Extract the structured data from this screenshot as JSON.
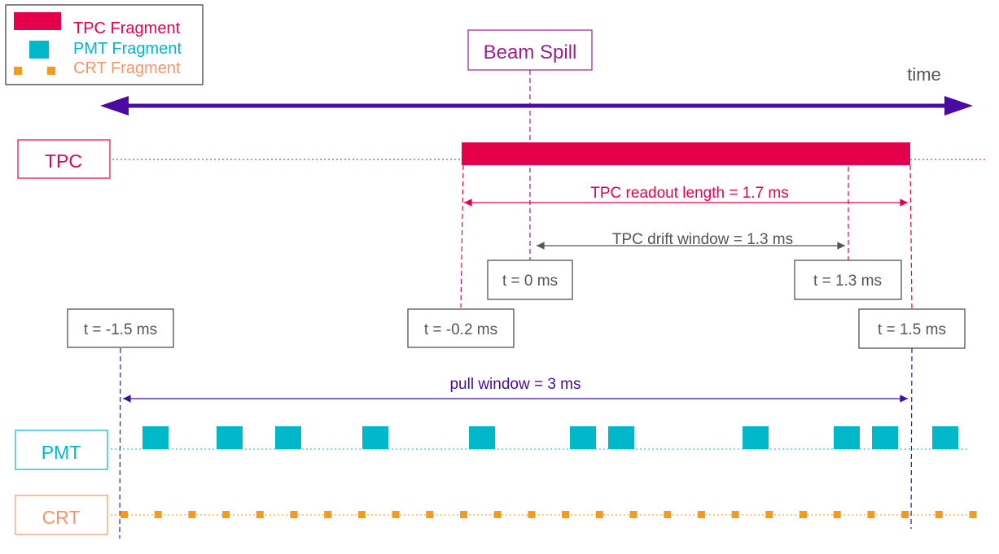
{
  "legend": {
    "tpc_label": "TPC Fragment",
    "pmt_label": "PMT Fragment",
    "crt_label": "CRT Fragment"
  },
  "beam_spill_label": "Beam Spill",
  "time_label": "time",
  "rows": {
    "tpc": "TPC",
    "pmt": "PMT",
    "crt": "CRT"
  },
  "annotations": {
    "tpc_readout": "TPC readout length = 1.7 ms",
    "tpc_drift": "TPC drift window = 1.3 ms",
    "pull_window": "pull window = 3 ms"
  },
  "time_markers": {
    "t0": "t = 0 ms",
    "t13": "t = 1.3 ms",
    "tm15": "t = -1.5 ms",
    "tm02": "t = -0.2 ms",
    "t15": "t = 1.5 ms"
  },
  "colors": {
    "tpc": "#e5004c",
    "pmt": "#00b8c9",
    "crt": "#f59a1a",
    "crt_text": "#f5956a",
    "beam": "#9a1f8f",
    "timeline": "#4b0aa0",
    "pull": "#3f0e9c",
    "gray": "#555555"
  }
}
